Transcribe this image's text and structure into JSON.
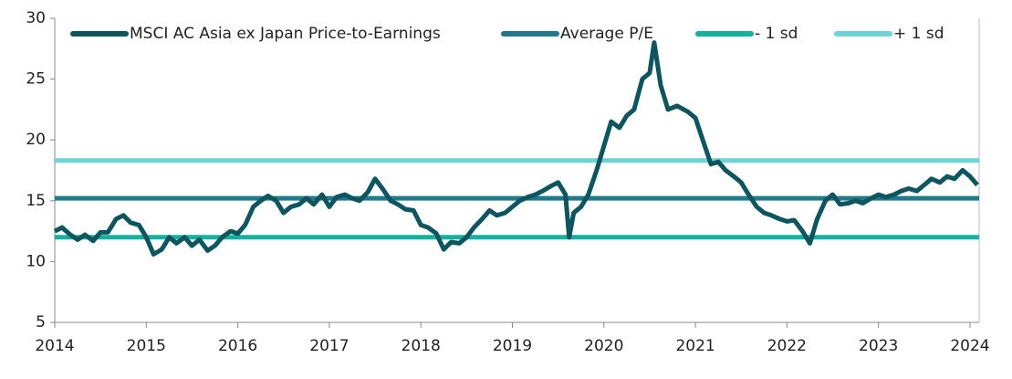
{
  "chart_data": {
    "type": "line",
    "xlim": [
      2014,
      2024.1
    ],
    "xticks": [
      2014,
      2015,
      2016,
      2017,
      2018,
      2019,
      2020,
      2021,
      2022,
      2023,
      2024
    ],
    "ylim": [
      5,
      30
    ],
    "yticks": [
      5,
      10,
      15,
      20,
      25,
      30
    ],
    "legend": "top",
    "series": [
      {
        "name": "MSCI AC Asia ex Japan Price-to-Earnings",
        "color": "#0e5560",
        "x": [
          2014.0,
          2014.08,
          2014.17,
          2014.25,
          2014.33,
          2014.42,
          2014.5,
          2014.58,
          2014.67,
          2014.75,
          2014.83,
          2014.92,
          2015.0,
          2015.08,
          2015.17,
          2015.25,
          2015.33,
          2015.42,
          2015.5,
          2015.58,
          2015.67,
          2015.75,
          2015.83,
          2015.92,
          2016.0,
          2016.08,
          2016.17,
          2016.25,
          2016.33,
          2016.42,
          2016.5,
          2016.58,
          2016.67,
          2016.75,
          2016.83,
          2016.92,
          2017.0,
          2017.08,
          2017.17,
          2017.25,
          2017.33,
          2017.42,
          2017.5,
          2017.58,
          2017.67,
          2017.75,
          2017.83,
          2017.92,
          2018.0,
          2018.08,
          2018.17,
          2018.25,
          2018.33,
          2018.42,
          2018.5,
          2018.58,
          2018.67,
          2018.75,
          2018.83,
          2018.92,
          2019.0,
          2019.08,
          2019.17,
          2019.25,
          2019.33,
          2019.42,
          2019.5,
          2019.58,
          2019.62,
          2019.67,
          2019.75,
          2019.83,
          2019.92,
          2020.0,
          2020.08,
          2020.17,
          2020.25,
          2020.33,
          2020.42,
          2020.5,
          2020.55,
          2020.62,
          2020.7,
          2020.8,
          2020.92,
          2021.0,
          2021.08,
          2021.17,
          2021.25,
          2021.33,
          2021.42,
          2021.5,
          2021.58,
          2021.67,
          2021.75,
          2021.83,
          2021.92,
          2022.0,
          2022.08,
          2022.17,
          2022.25,
          2022.33,
          2022.42,
          2022.5,
          2022.58,
          2022.67,
          2022.75,
          2022.83,
          2022.92,
          2023.0,
          2023.08,
          2023.17,
          2023.25,
          2023.33,
          2023.42,
          2023.5,
          2023.58,
          2023.67,
          2023.75,
          2023.83,
          2023.92,
          2024.0,
          2024.08
        ],
        "values": [
          12.5,
          12.8,
          12.2,
          11.8,
          12.2,
          11.7,
          12.4,
          12.4,
          13.5,
          13.8,
          13.2,
          13.0,
          12.0,
          10.6,
          11.0,
          12.0,
          11.5,
          12.0,
          11.3,
          11.8,
          10.9,
          11.3,
          12.0,
          12.5,
          12.3,
          13.0,
          14.5,
          15.0,
          15.4,
          15.0,
          14.0,
          14.5,
          14.7,
          15.2,
          14.7,
          15.5,
          14.5,
          15.3,
          15.5,
          15.2,
          15.0,
          15.7,
          16.8,
          16.0,
          15.0,
          14.7,
          14.3,
          14.2,
          13.0,
          12.8,
          12.3,
          11.0,
          11.6,
          11.5,
          12.0,
          12.8,
          13.5,
          14.2,
          13.8,
          14.0,
          14.5,
          15.0,
          15.3,
          15.5,
          15.8,
          16.2,
          16.5,
          15.5,
          12.0,
          14.0,
          14.5,
          15.5,
          17.5,
          19.5,
          21.5,
          21.0,
          22.0,
          22.5,
          25.0,
          25.5,
          28.0,
          24.5,
          22.5,
          22.8,
          22.3,
          21.8,
          20.0,
          18.0,
          18.2,
          17.5,
          17.0,
          16.5,
          15.5,
          14.5,
          14.0,
          13.8,
          13.5,
          13.3,
          13.4,
          12.5,
          11.5,
          13.5,
          15.0,
          15.5,
          14.7,
          14.8,
          15.0,
          14.8,
          15.2,
          15.5,
          15.3,
          15.5,
          15.8,
          16.0,
          15.8,
          16.3,
          16.8,
          16.5,
          17.0,
          16.8,
          17.5,
          17.0,
          16.3
        ]
      },
      {
        "name": "Average P/E",
        "color": "#217a8a",
        "x": [
          2014,
          2024.1
        ],
        "values": [
          15.2,
          15.2
        ]
      },
      {
        "name": "- 1 sd",
        "color": "#14b0a0",
        "x": [
          2014,
          2024.1
        ],
        "values": [
          12.0,
          12.0
        ]
      },
      {
        "name": "+ 1 sd",
        "color": "#6dd3d6",
        "x": [
          2014,
          2024.1
        ],
        "values": [
          18.3,
          18.3
        ]
      }
    ]
  }
}
